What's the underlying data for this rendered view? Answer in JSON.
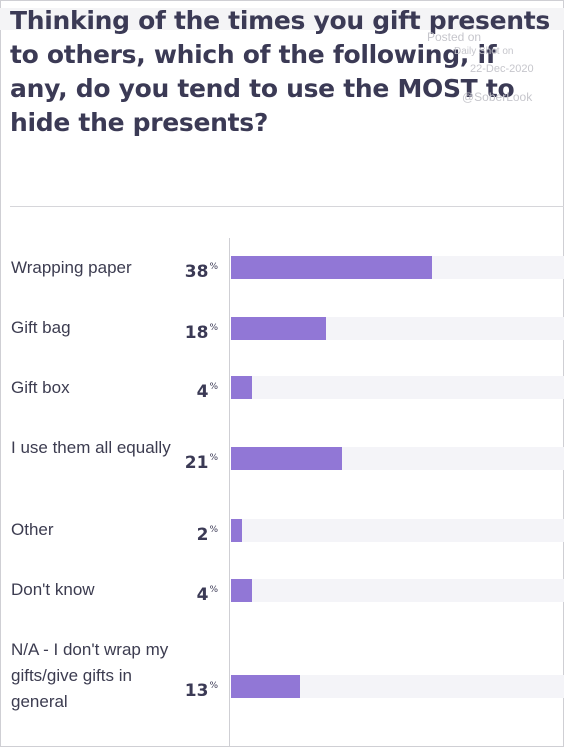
{
  "title": "Thinking of the times you gift presents to others, which of the following, if any, do you tend to use the MOST to hide the presents?",
  "watermark": {
    "line1": "Posted on",
    "line2": "Daily Shot on",
    "line3": "22-Dec-2020",
    "line4": "@SoberLook"
  },
  "chart_data": {
    "type": "bar",
    "orientation": "horizontal",
    "unit": "%",
    "xlim": [
      0,
      100
    ],
    "categories": [
      "Wrapping paper",
      "Gift bag",
      "Gift box",
      "I use them all equally",
      "Other",
      "Don't know",
      "N/A - I don't wrap my gifts/give gifts in general"
    ],
    "values": [
      38,
      18,
      4,
      21,
      2,
      4,
      13
    ],
    "bar_color": "#9177d6",
    "track_color": "#f4f4f8"
  }
}
